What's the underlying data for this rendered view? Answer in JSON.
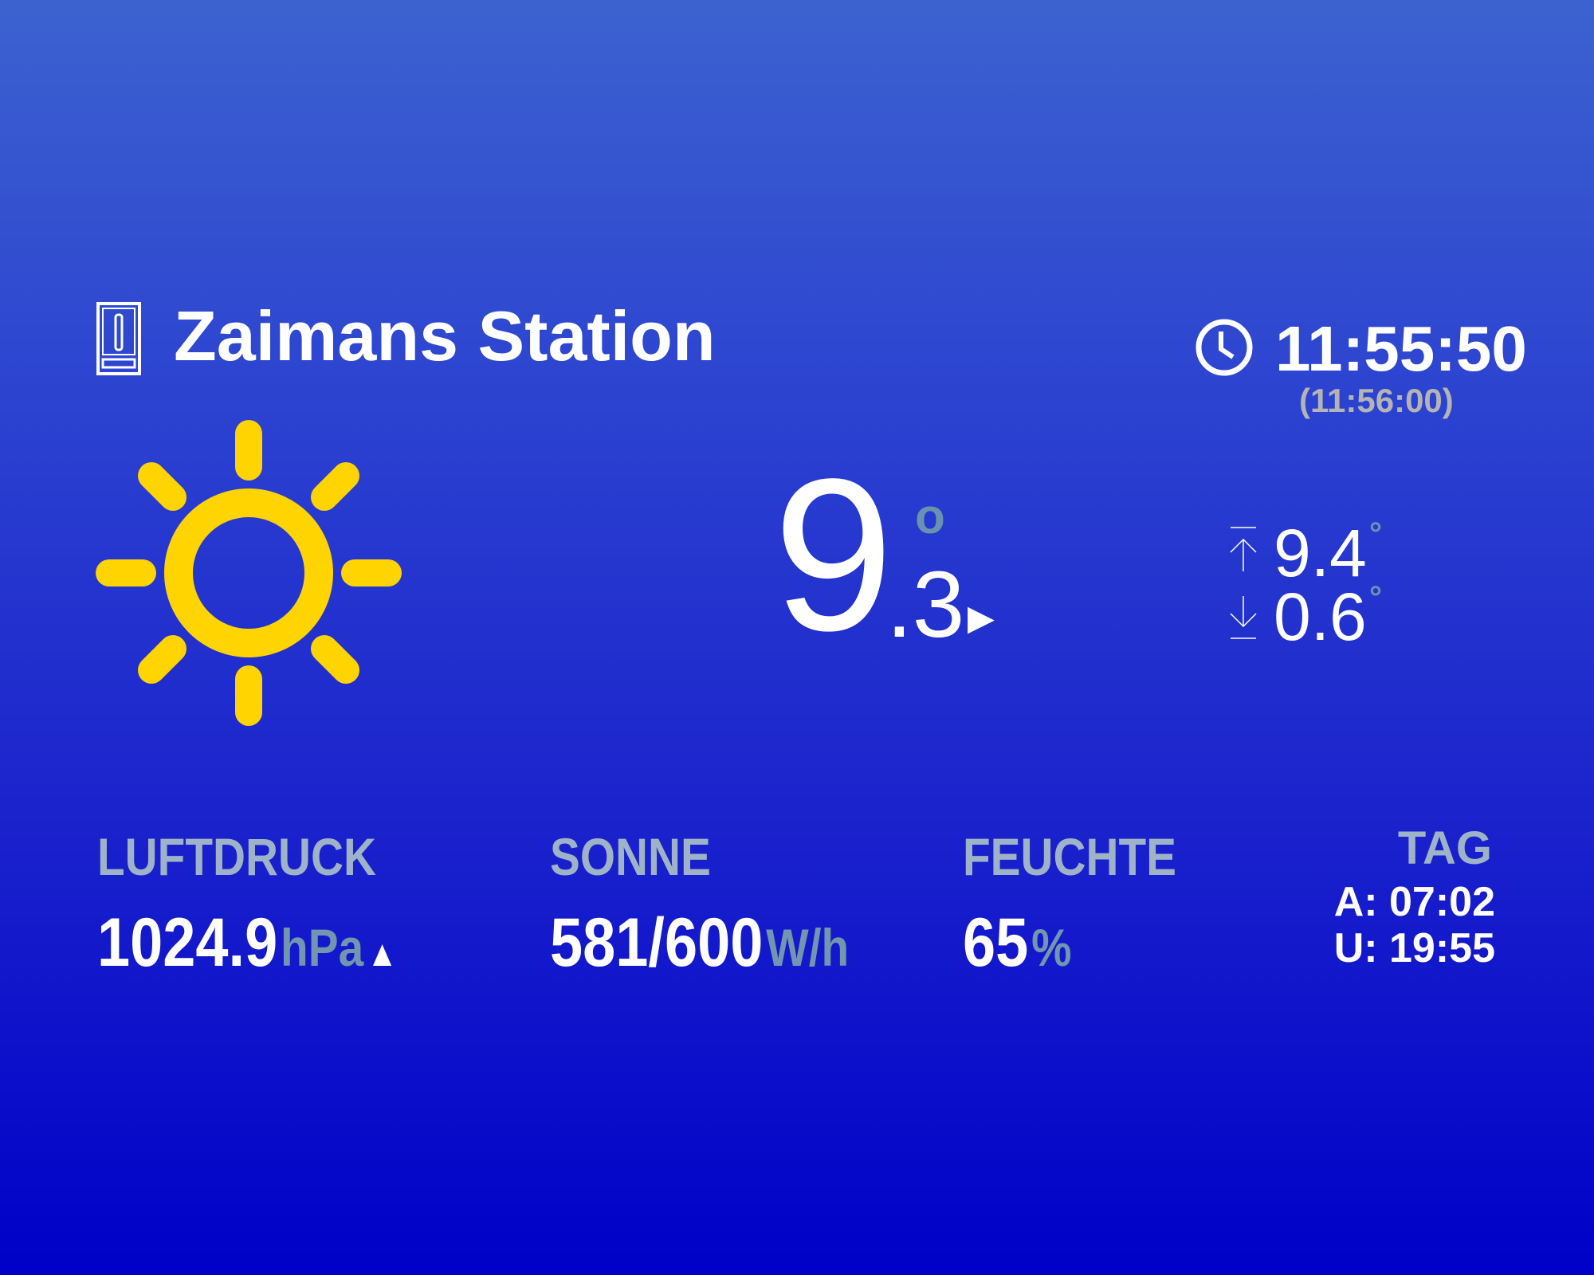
{
  "header": {
    "station_icon": "station-device-icon",
    "title": "Zaimans Station",
    "clock_icon": "clock-icon",
    "time": "11:55:50",
    "update_time": "(11:56:00)"
  },
  "current": {
    "weather_icon": "sun-icon",
    "weather_color": "#ffd400",
    "temp_int": "9",
    "temp_dec": ".3",
    "degree": "o",
    "trend": "▶",
    "max_icon": "arrow-up-to-line-icon",
    "max": "9.4",
    "min_icon": "arrow-down-to-line-icon",
    "min": "0.6",
    "minmax_degree": "°"
  },
  "stats": {
    "pressure": {
      "label": "LUFTDRUCK",
      "value": "1024.9",
      "unit": "hPa",
      "trend": "▲"
    },
    "sun": {
      "label": "SONNE",
      "value": "581/600",
      "unit": "W/h"
    },
    "humidity": {
      "label": "FEUCHTE",
      "value": "65",
      "unit": "%"
    },
    "day": {
      "label": "TAG",
      "sunrise": "A: 07:02",
      "sunset": "U: 19:55"
    }
  },
  "colors": {
    "label": "#9fb3c8",
    "unit": "#7296b0",
    "subtime": "#b4b4b4",
    "sun": "#ffd400"
  }
}
